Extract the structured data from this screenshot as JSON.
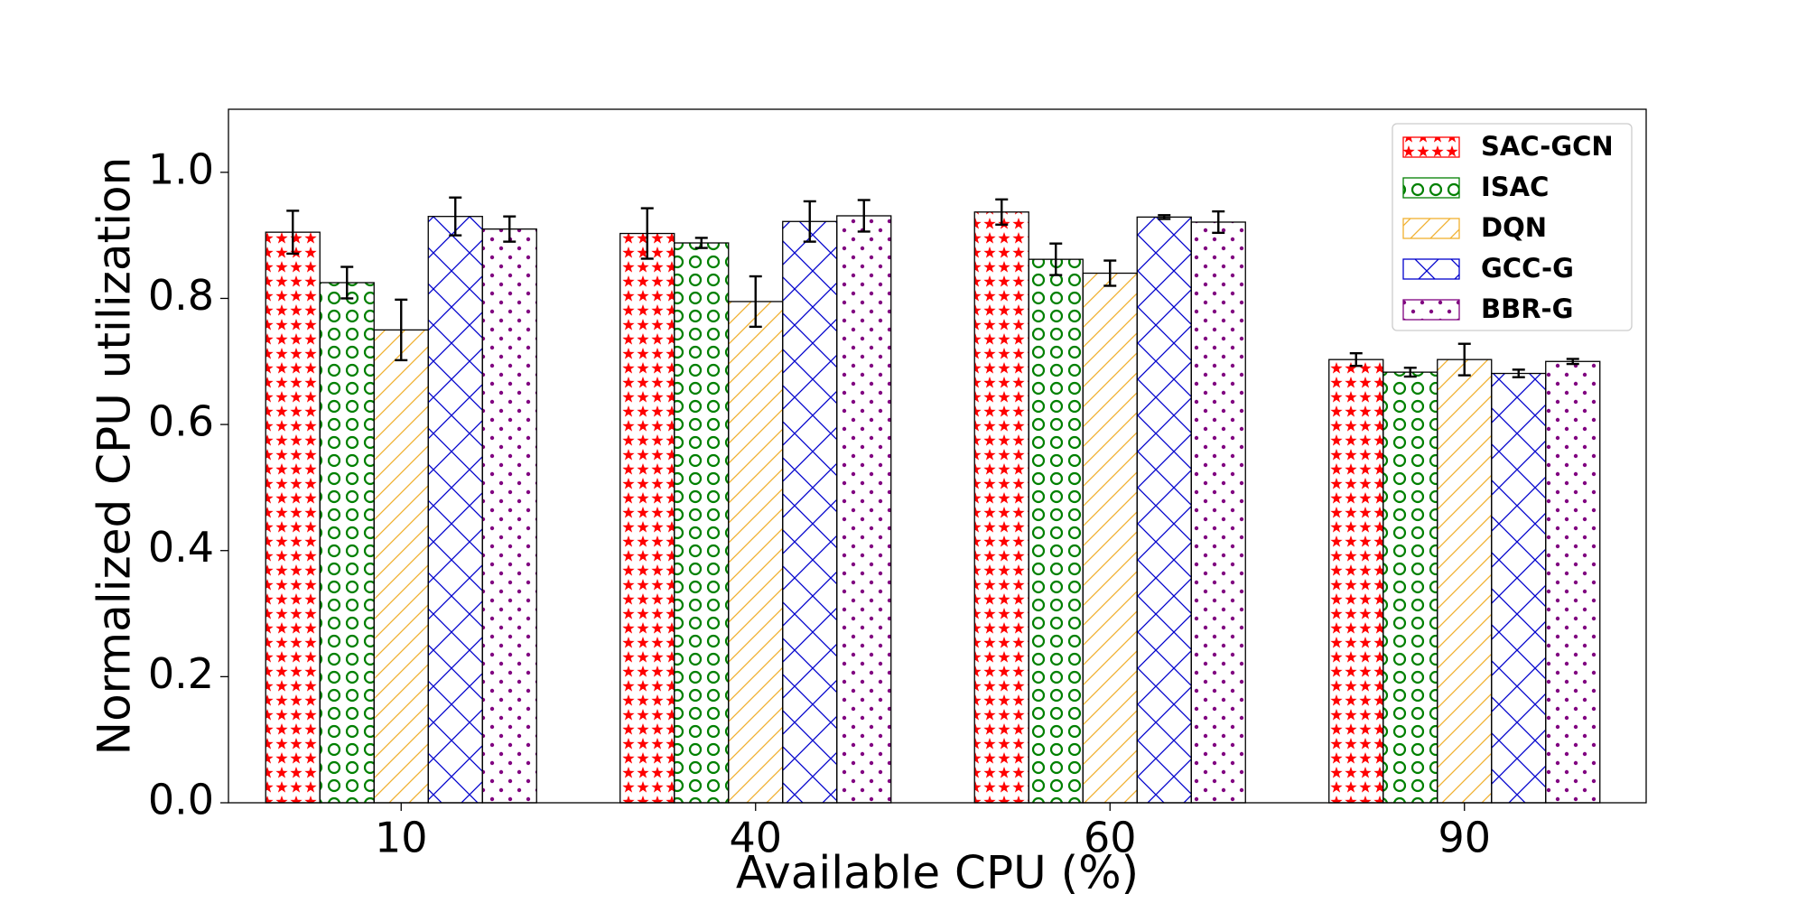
{
  "chart_data": {
    "type": "bar",
    "x_label": "Available CPU (%)",
    "y_label": "Normalized CPU utilization",
    "categories": [
      "10",
      "40",
      "60",
      "90"
    ],
    "ylim": [
      0,
      1.1
    ],
    "yticks": [
      {
        "value": 0,
        "label": "0.0"
      },
      {
        "value": 0.2,
        "label": "0.2"
      },
      {
        "value": 0.4,
        "label": "0.4"
      },
      {
        "value": 0.6,
        "label": "0.6"
      },
      {
        "value": 0.8,
        "label": "0.8"
      },
      {
        "value": 1.0,
        "label": "1.0"
      }
    ],
    "legend": "upper right",
    "series": [
      {
        "name": "SAC-GCN",
        "color": "#ff0000",
        "hatch": "stars",
        "values": [
          0.905,
          0.903,
          0.937,
          0.703
        ],
        "errors": [
          0.034,
          0.04,
          0.02,
          0.01
        ]
      },
      {
        "name": "ISAC",
        "color": "#008000",
        "hatch": "circles",
        "values": [
          0.825,
          0.888,
          0.862,
          0.683
        ],
        "errors": [
          0.025,
          0.008,
          0.025,
          0.007
        ]
      },
      {
        "name": "DQN",
        "color": "#f0b030",
        "hatch": "diagonal",
        "values": [
          0.75,
          0.795,
          0.84,
          0.703
        ],
        "errors": [
          0.048,
          0.04,
          0.02,
          0.025
        ]
      },
      {
        "name": "GCC-G",
        "color": "#0000cc",
        "hatch": "crosshatch",
        "values": [
          0.93,
          0.922,
          0.929,
          0.681
        ],
        "errors": [
          0.03,
          0.032,
          0.003,
          0.006
        ]
      },
      {
        "name": "BBR-G",
        "color": "#800080",
        "hatch": "dots",
        "values": [
          0.91,
          0.931,
          0.921,
          0.7
        ],
        "errors": [
          0.02,
          0.025,
          0.017,
          0.004
        ]
      }
    ]
  }
}
